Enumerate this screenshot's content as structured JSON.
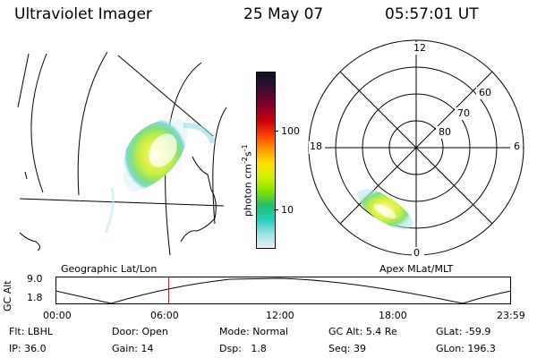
{
  "header": {
    "title": "Ultraviolet Imager",
    "date": "25 May 07",
    "time": "05:57:01 UT"
  },
  "colorbar": {
    "unit_label": "photon cm",
    "unit_exp1": "-2",
    "unit_mid": "s",
    "unit_exp2": "-1",
    "ticks": [
      "100",
      "10"
    ]
  },
  "polar_plot": {
    "mlt_labels": {
      "top": "12",
      "left": "18",
      "right": "6",
      "bottom": "0"
    },
    "lat_labels": [
      "60",
      "70",
      "80"
    ]
  },
  "panel_labels": {
    "left": "Geographic Lat/Lon",
    "right": "Apex MLat/MLT"
  },
  "altitude_strip": {
    "axis_label": "GC Alt",
    "y_ticks": [
      "9.0",
      "1.8"
    ],
    "x_ticks": [
      "00:00",
      "06:00",
      "12:00",
      "18:00",
      "23:59"
    ],
    "current_time_fraction": 0.2475
  },
  "info": {
    "row1": [
      {
        "key": "Flt:",
        "value": "LBHL"
      },
      {
        "key": "Door:",
        "value": "Open"
      },
      {
        "key": "Mode:",
        "value": "Normal"
      },
      {
        "key": "GC Alt:",
        "value": "5.4 Re"
      },
      {
        "key": "GLat:",
        "value": "-59.9"
      }
    ],
    "row2": [
      {
        "key": "IP:",
        "value": "36.0"
      },
      {
        "key": "Gain:",
        "value": "14"
      },
      {
        "key": "Dsp:",
        "value": "1.8"
      },
      {
        "key": "Seq:",
        "value": "39"
      },
      {
        "key": "GLon:",
        "value": "196.3"
      }
    ]
  },
  "colors": {
    "marker": "#ff0000",
    "line": "#000000"
  }
}
